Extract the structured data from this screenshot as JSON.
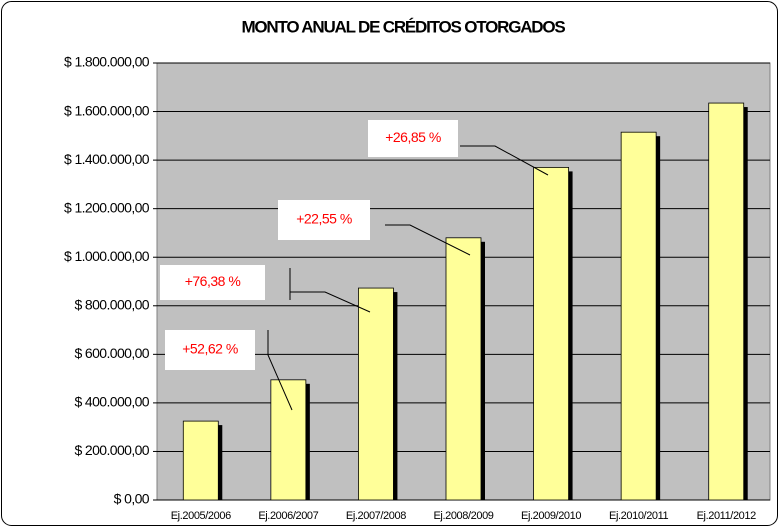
{
  "chart_data": {
    "type": "bar",
    "title": "MONTO ANUAL DE CRÉDITOS OTORGADOS",
    "categories": [
      "Ej.2005/2006",
      "Ej.2006/2007",
      "Ej.2007/2008",
      "Ej.2008/2009",
      "Ej.2009/2010",
      "Ej.2010/2011",
      "Ej.2011/2012"
    ],
    "values": [
      325000,
      495000,
      873000,
      1080000,
      1370000,
      1515000,
      1635000
    ],
    "color": "#ffff99",
    "ylim": [
      0,
      1800000
    ],
    "yticks": [
      {
        "value": 0,
        "label": "$ 0,00"
      },
      {
        "value": 200000,
        "label": "$ 200.000,00"
      },
      {
        "value": 400000,
        "label": "$ 400.000,00"
      },
      {
        "value": 600000,
        "label": "$ 600.000,00"
      },
      {
        "value": 800000,
        "label": "$ 800.000,00"
      },
      {
        "value": 1000000,
        "label": "$ 1.000.000,00"
      },
      {
        "value": 1200000,
        "label": "$ 1.200.000,00"
      },
      {
        "value": 1400000,
        "label": "$ 1.400.000,00"
      },
      {
        "value": 1600000,
        "label": "$ 1.600.000,00"
      },
      {
        "value": 1800000,
        "label": "$ 1.800.000,00"
      }
    ],
    "grid": true,
    "annotations": [
      "+52,62 %",
      "+76,38 %",
      "+22,55 %",
      "+26,85 %"
    ]
  }
}
